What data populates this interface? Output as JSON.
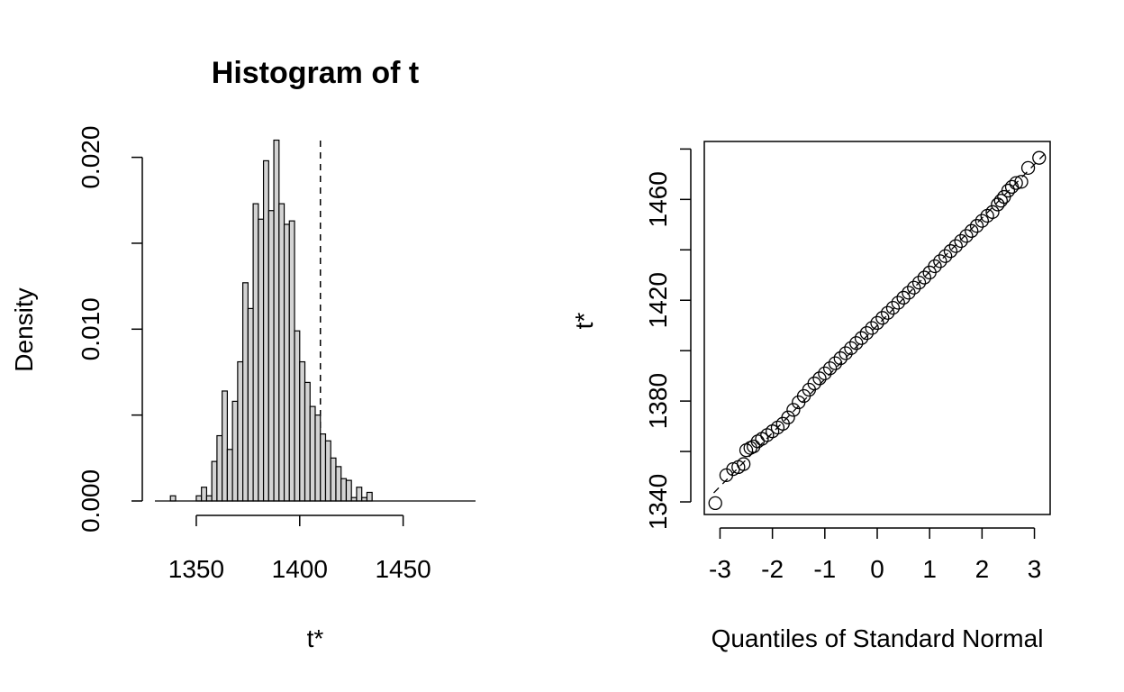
{
  "chart_data": [
    {
      "type": "bar",
      "title": "Histogram of t",
      "xlabel": "t*",
      "ylabel": "Density",
      "xlim": [
        1330,
        1485
      ],
      "ylim": [
        0,
        0.0215
      ],
      "x_ticks": [
        1350,
        1400,
        1450
      ],
      "x_tick_labels": [
        "1350",
        "1400",
        "1450"
      ],
      "y_ticks": [
        0.0,
        0.005,
        0.01,
        0.015,
        0.02
      ],
      "y_tick_labels": [
        "0.000",
        "",
        "0.010",
        "",
        "0.020"
      ],
      "bin_width": 2.5,
      "bins_start": [
        1337.5,
        1340,
        1342.5,
        1345,
        1347.5,
        1350,
        1352.5,
        1355,
        1357.5,
        1360,
        1362.5,
        1365,
        1367.5,
        1370,
        1372.5,
        1375,
        1377.5,
        1380,
        1382.5,
        1385,
        1387.5,
        1390,
        1392.5,
        1395,
        1397.5,
        1400,
        1402.5,
        1405,
        1407.5,
        1410,
        1412.5,
        1415,
        1417.5,
        1420,
        1422.5,
        1425,
        1427.5,
        1430,
        1432.5,
        1435,
        1437.5,
        1440,
        1442.5,
        1445,
        1447.5,
        1450,
        1452.5,
        1455,
        1457.5,
        1460,
        1462.5,
        1465,
        1467.5,
        1470,
        1472.5,
        1475
      ],
      "values": [
        0.0003,
        0,
        0,
        0,
        0,
        0.0003,
        0.0008,
        0.0003,
        0.0023,
        0.0038,
        0.0064,
        0.003,
        0.0058,
        0.0081,
        0.0127,
        0.0112,
        0.0173,
        0.0164,
        0.0198,
        0.0169,
        0.021,
        0.0173,
        0.0161,
        0.0163,
        0.0099,
        0.0081,
        0.0069,
        0.0055,
        0.005,
        0.0039,
        0.0035,
        0.0025,
        0.002,
        0.0013,
        0.0012,
        0.0002,
        0.0008,
        0.0002,
        0.0005,
        0,
        0,
        0,
        0,
        0,
        0,
        0,
        0,
        0,
        0,
        0,
        0,
        0,
        0,
        0,
        0,
        0
      ],
      "reference_line_x": 1410
    },
    {
      "type": "scatter",
      "xlabel": "Quantiles of Standard Normal",
      "ylabel": "t*",
      "xlim": [
        -3.3,
        3.3
      ],
      "ylim": [
        1335,
        1483
      ],
      "x_ticks": [
        -3,
        -2,
        -1,
        0,
        1,
        2,
        3
      ],
      "x_tick_labels": [
        "-3",
        "-2",
        "-1",
        "0",
        "1",
        "2",
        "3"
      ],
      "y_ticks": [
        1340,
        1380,
        1420,
        1460
      ],
      "y_tick_labels": [
        "1340",
        "1380",
        "1420",
        "1460"
      ],
      "points": [
        [
          -3.09,
          1339.5
        ],
        [
          -2.88,
          1350.6
        ],
        [
          -2.75,
          1353.0
        ],
        [
          -2.65,
          1353.8
        ],
        [
          -2.55,
          1355.0
        ],
        [
          -2.5,
          1360.5
        ],
        [
          -2.42,
          1361.4
        ],
        [
          -2.36,
          1362.0
        ],
        [
          -2.28,
          1364.0
        ],
        [
          -2.2,
          1365.0
        ],
        [
          -2.1,
          1366.5
        ],
        [
          -2.0,
          1368.0
        ],
        [
          -1.9,
          1369.5
        ],
        [
          -1.8,
          1371.0
        ],
        [
          -1.7,
          1373.5
        ],
        [
          -1.6,
          1376.5
        ],
        [
          -1.5,
          1379.5
        ],
        [
          -1.4,
          1382.0
        ],
        [
          -1.3,
          1384.5
        ],
        [
          -1.2,
          1387.0
        ],
        [
          -1.1,
          1389.0
        ],
        [
          -1.0,
          1391.0
        ],
        [
          -0.9,
          1393.0
        ],
        [
          -0.8,
          1395.0
        ],
        [
          -0.7,
          1397.0
        ],
        [
          -0.6,
          1399.0
        ],
        [
          -0.5,
          1401.0
        ],
        [
          -0.4,
          1403.0
        ],
        [
          -0.3,
          1405.0
        ],
        [
          -0.2,
          1407.0
        ],
        [
          -0.1,
          1409.0
        ],
        [
          0.0,
          1411.0
        ],
        [
          0.1,
          1413.0
        ],
        [
          0.2,
          1415.0
        ],
        [
          0.3,
          1417.0
        ],
        [
          0.4,
          1419.0
        ],
        [
          0.5,
          1421.0
        ],
        [
          0.6,
          1423.0
        ],
        [
          0.7,
          1425.0
        ],
        [
          0.8,
          1427.0
        ],
        [
          0.9,
          1429.0
        ],
        [
          1.0,
          1431.0
        ],
        [
          1.1,
          1433.5
        ],
        [
          1.2,
          1435.5
        ],
        [
          1.3,
          1437.5
        ],
        [
          1.4,
          1439.5
        ],
        [
          1.5,
          1441.5
        ],
        [
          1.6,
          1443.5
        ],
        [
          1.7,
          1445.5
        ],
        [
          1.8,
          1447.5
        ],
        [
          1.9,
          1449.5
        ],
        [
          2.0,
          1451.5
        ],
        [
          2.1,
          1453.5
        ],
        [
          2.2,
          1455.0
        ],
        [
          2.3,
          1458.0
        ],
        [
          2.36,
          1459.5
        ],
        [
          2.42,
          1461.0
        ],
        [
          2.5,
          1463.5
        ],
        [
          2.57,
          1465.0
        ],
        [
          2.65,
          1466.5
        ],
        [
          2.75,
          1467.0
        ],
        [
          2.88,
          1472.5
        ],
        [
          3.09,
          1476.5
        ]
      ],
      "reference_line": {
        "intercept": 1410,
        "slope": 21.3
      }
    }
  ]
}
